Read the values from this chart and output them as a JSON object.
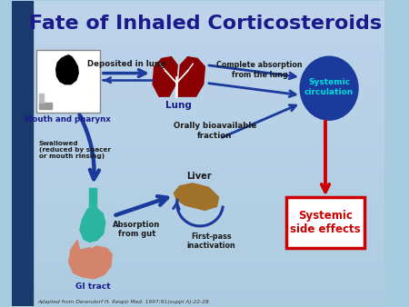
{
  "title": "Fate of Inhaled Corticosteroids",
  "title_color": "#1a1a8c",
  "title_fontsize": 16,
  "left_panel_color": "#1a3a6e",
  "citation": "Adapted from Derendorf H. Respir Med. 1997;91(suppl A):22-28.",
  "labels": {
    "mouth": "Mouth and pharynx",
    "lung": "Lung",
    "deposited": "Deposited in lung",
    "complete_abs": "Complete absorption\nfrom the lung",
    "systemic_circ": "Systemic\ncirculation",
    "orally_bio": "Orally bioavailable\nfraction",
    "swallowed": "Swallowed\n(reduced by spacer\nor mouth rinsing)",
    "gi_tract": "GI tract",
    "absorption_gut": "Absorption\nfrom gut",
    "liver": "Liver",
    "first_pass": "First-pass\ninactivation",
    "systemic_side": "Systemic\nside effects"
  },
  "colors": {
    "lung_dark": "#8b0000",
    "gi_orange": "#d4846a",
    "gi_teal": "#2ab5a0",
    "liver_brown": "#a0722a",
    "systemic_circ_fill": "#1a3a9c",
    "systemic_circ_text": "#00dddd",
    "side_effects_border": "#cc0000",
    "side_effects_text": "#cc0000",
    "arrow_blue": "#1a3a9c",
    "arrow_red": "#cc0000",
    "text_dark": "#1a1a1a",
    "text_blue": "#1a1a8c"
  }
}
